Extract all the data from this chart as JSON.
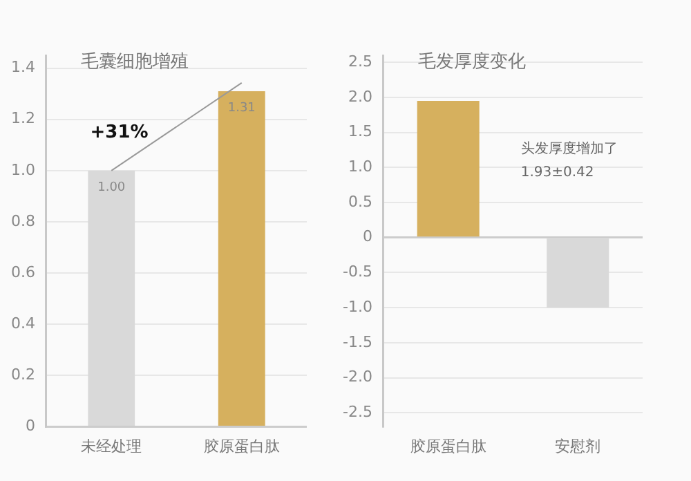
{
  "chart_data": [
    {
      "type": "bar",
      "title": "毛囊细胞增殖",
      "categories": [
        "未经处理",
        "胶原蛋白肽"
      ],
      "values": [
        1.0,
        1.31
      ],
      "colors": [
        "#d9d9d9",
        "#d6b05e"
      ],
      "value_labels": [
        "1.00",
        "1.31"
      ],
      "ylim": [
        0,
        1.45
      ],
      "yticks": [
        0,
        0.2,
        0.4,
        0.6,
        0.8,
        {
          "value": 1,
          "label": "1.0"
        },
        1.2,
        1.4
      ],
      "grid": "y",
      "legend": false,
      "annotations": [
        "+31%"
      ]
    },
    {
      "type": "bar",
      "title": "毛发厚度变化",
      "categories": [
        "胶原蛋白肽",
        "安慰剂"
      ],
      "values": [
        1.95,
        -1.0
      ],
      "colors": [
        "#d6b05e",
        "#d9d9d9"
      ],
      "ylim": [
        -2.7,
        2.6
      ],
      "yticks": [
        2.5,
        {
          "value": 2,
          "label": "2.0"
        },
        1.5,
        {
          "value": 1,
          "label": "1.0"
        },
        0.5,
        0,
        -0.5,
        {
          "value": -1,
          "label": "-1.0"
        },
        -1.5,
        {
          "value": -2,
          "label": "-2.0"
        },
        -2.5
      ],
      "grid": "y",
      "legend": false,
      "annotations": [
        "头发厚度增加了",
        "1.93±0.42"
      ]
    }
  ]
}
